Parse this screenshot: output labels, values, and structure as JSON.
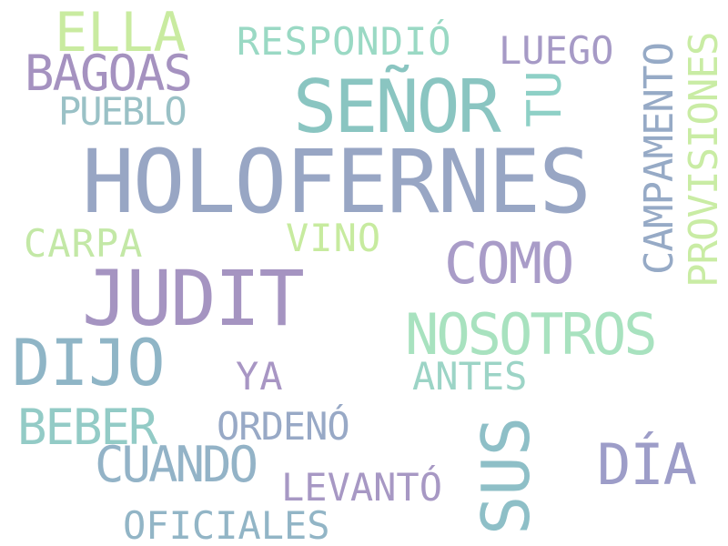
{
  "words": {
    "holofernes": {
      "text": "HOLOFERNES",
      "color": "#98a6c4"
    },
    "judit": {
      "text": "JUDIT",
      "color": "#a594c1"
    },
    "senor": {
      "text": "SEÑOR",
      "color": "#8ac5c1"
    },
    "dijo": {
      "text": "DIJO",
      "color": "#8fb5c6"
    },
    "sus": {
      "text": "SUS",
      "color": "#8ebfc7"
    },
    "nosotros": {
      "text": "NOSOTROS",
      "color": "#a8e2bf"
    },
    "como": {
      "text": "COMO",
      "color": "#a99cc8"
    },
    "ella": {
      "text": "ELLA",
      "color": "#c9eba0"
    },
    "bagoas": {
      "text": "BAGOAS",
      "color": "#a592c0"
    },
    "dia": {
      "text": "DÍA",
      "color": "#9d9dc8"
    },
    "cuando": {
      "text": "CUANDO",
      "color": "#93b3c7"
    },
    "beber": {
      "text": "BEBER",
      "color": "#93cbc6"
    },
    "tu": {
      "text": "TU",
      "color": "#8ed0c6"
    },
    "provisiones": {
      "text": "PROVISIONES",
      "color": "#c9eca4"
    },
    "campamento": {
      "text": "CAMPAMENTO",
      "color": "#96aac6"
    },
    "respondio": {
      "text": "RESPONDIÓ",
      "color": "#9ad9c4"
    },
    "luego": {
      "text": "LUEGO",
      "color": "#a69ac6"
    },
    "pueblo": {
      "text": "PUEBLO",
      "color": "#9ac1c6"
    },
    "carpa": {
      "text": "CARPA",
      "color": "#c3e8a6"
    },
    "vino": {
      "text": "VINO",
      "color": "#c7eb9f"
    },
    "ya": {
      "text": "YA",
      "color": "#a896c4"
    },
    "antes": {
      "text": "ANTES",
      "color": "#9cd4c6"
    },
    "ordeno": {
      "text": "ORDENÓ",
      "color": "#98a9c6"
    },
    "levanto": {
      "text": "LEVANTÓ",
      "color": "#a798c4"
    },
    "oficiales": {
      "text": "OFICIALES",
      "color": "#92b5c6"
    }
  }
}
